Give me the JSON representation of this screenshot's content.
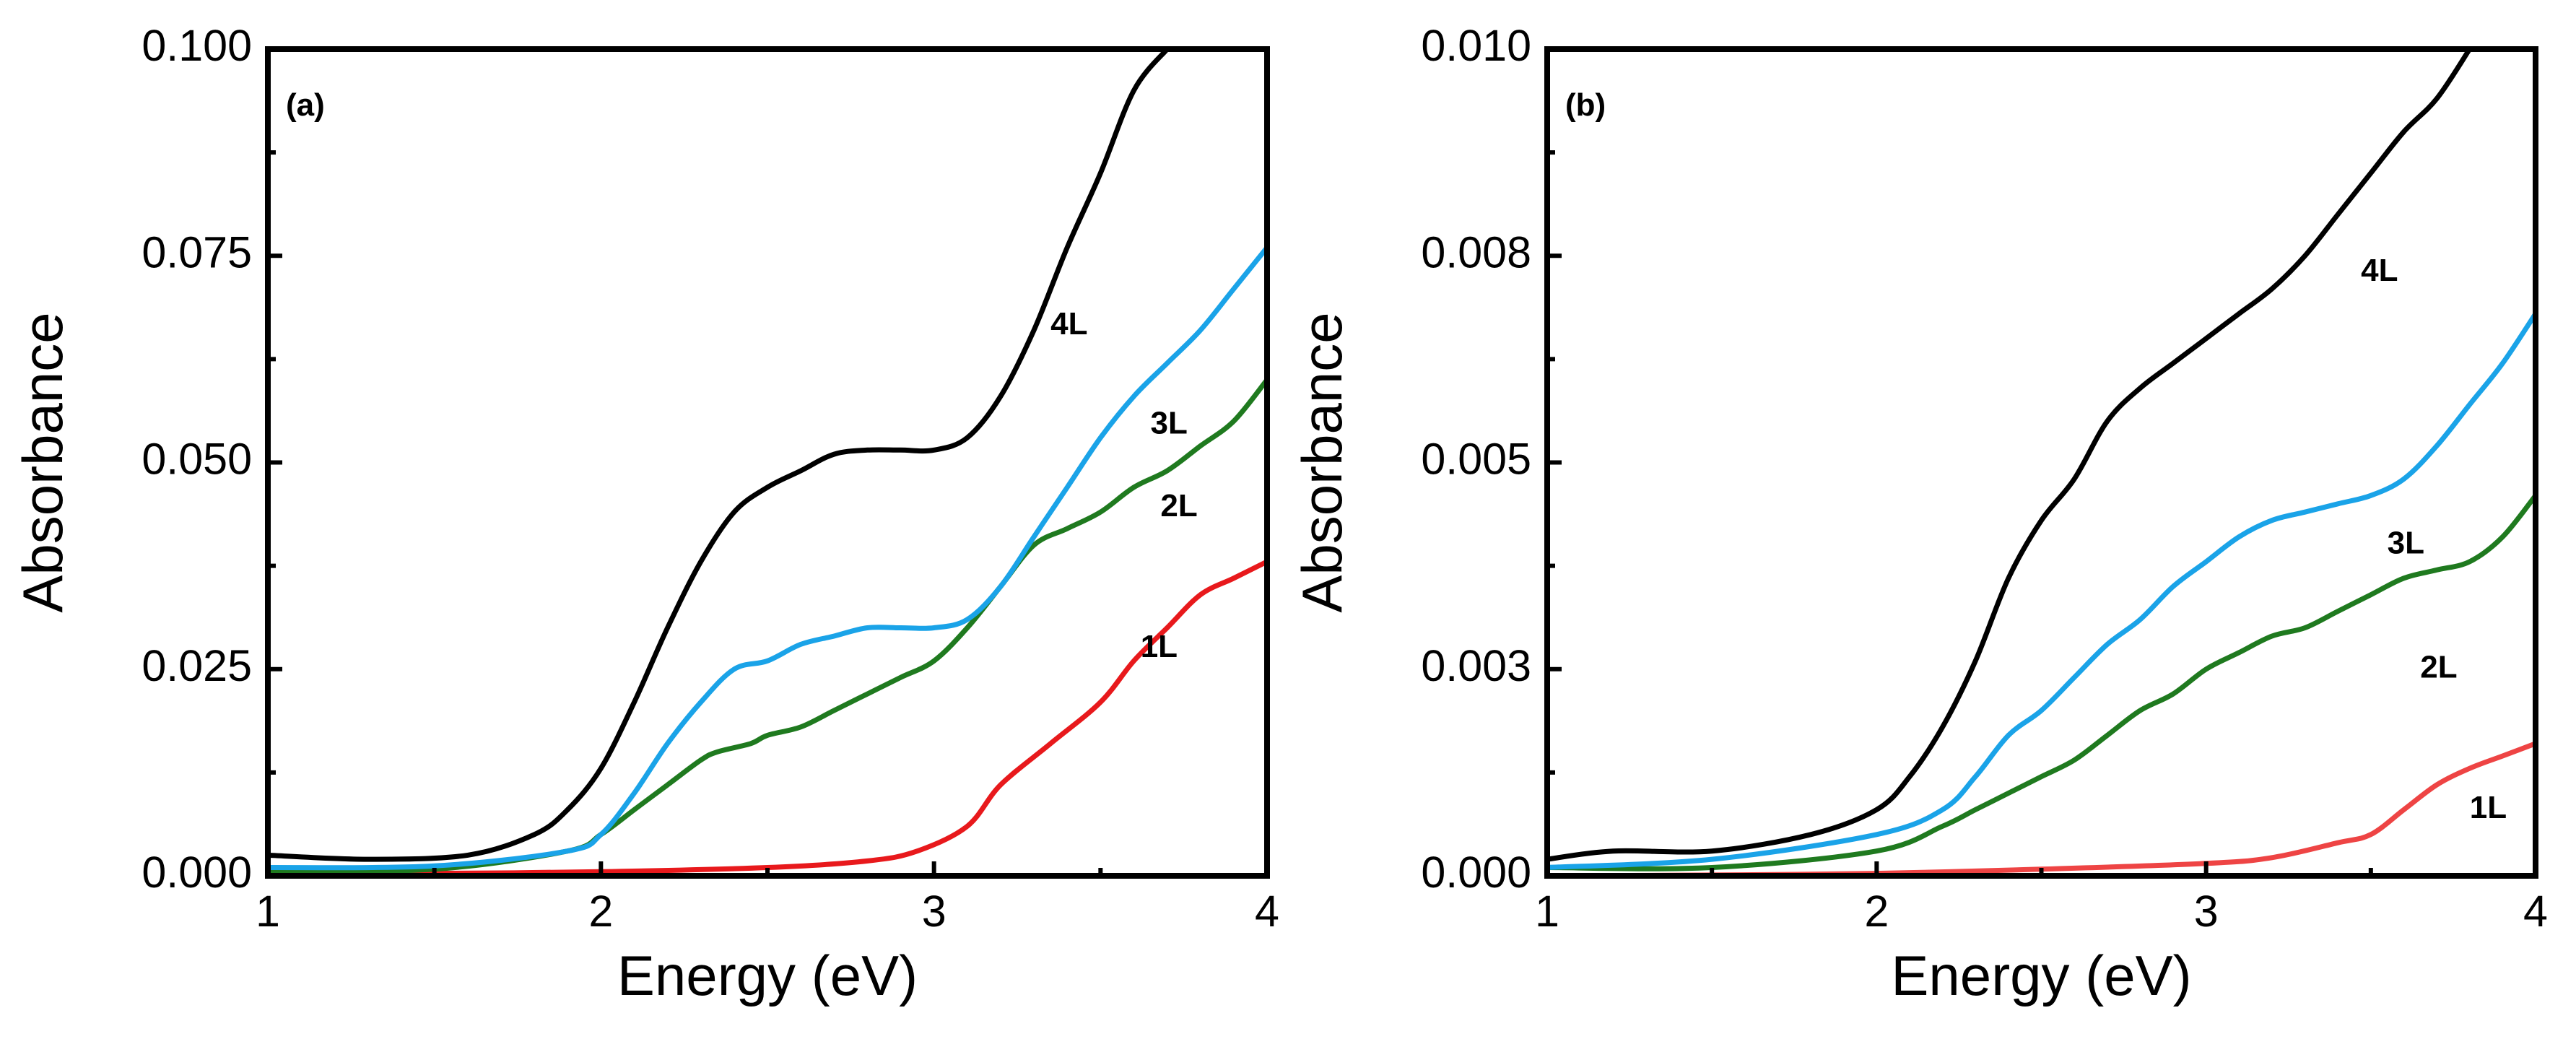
{
  "chart_data": [
    {
      "type": "line",
      "panel_label": "(a)",
      "xlabel": "Energy (eV)",
      "ylabel": "Absorbance",
      "xlim": [
        1,
        4
      ],
      "ylim": [
        0,
        0.1
      ],
      "xticks": [
        1,
        2,
        3,
        4
      ],
      "xtick_labels": [
        "1",
        "2",
        "3",
        "4"
      ],
      "yticks": [
        0,
        0.025,
        0.05,
        0.075,
        0.1
      ],
      "ytick_labels": [
        "0.000",
        "0.025",
        "0.050",
        "0.075",
        "0.100"
      ],
      "grid": false,
      "series": [
        {
          "name": "1L",
          "color": "#e8191c",
          "label_at": [
            3.62,
            0.0275
          ],
          "x": [
            1.0,
            1.5,
            2.0,
            2.5,
            2.8,
            2.95,
            3.1,
            3.2,
            3.35,
            3.5,
            3.6,
            3.7,
            3.8,
            3.9,
            4.0
          ],
          "y": [
            0.0003,
            0.0003,
            0.0005,
            0.001,
            0.0018,
            0.003,
            0.006,
            0.011,
            0.016,
            0.021,
            0.026,
            0.03,
            0.034,
            0.036,
            0.038
          ]
        },
        {
          "name": "2L",
          "color": "#1f7a1f",
          "label_at": [
            3.68,
            0.0445
          ],
          "x": [
            1.0,
            1.5,
            1.9,
            2.0,
            2.1,
            2.2,
            2.3,
            2.35,
            2.45,
            2.5,
            2.6,
            2.7,
            2.8,
            2.9,
            3.0,
            3.1,
            3.2,
            3.3,
            3.4,
            3.5,
            3.6,
            3.7,
            3.8,
            3.9,
            4.0
          ],
          "y": [
            0.0005,
            0.0008,
            0.003,
            0.005,
            0.008,
            0.011,
            0.014,
            0.015,
            0.016,
            0.017,
            0.018,
            0.02,
            0.022,
            0.024,
            0.026,
            0.03,
            0.035,
            0.04,
            0.042,
            0.044,
            0.047,
            0.049,
            0.052,
            0.055,
            0.06
          ]
        },
        {
          "name": "3L",
          "color": "#1aa3e8",
          "label_at": [
            3.65,
            0.0545
          ],
          "x": [
            1.0,
            1.5,
            1.9,
            2.0,
            2.1,
            2.2,
            2.3,
            2.4,
            2.5,
            2.6,
            2.7,
            2.8,
            2.9,
            3.0,
            3.1,
            3.2,
            3.3,
            3.4,
            3.5,
            3.6,
            3.7,
            3.8,
            3.9,
            4.0
          ],
          "y": [
            0.001,
            0.0012,
            0.003,
            0.005,
            0.01,
            0.016,
            0.021,
            0.025,
            0.026,
            0.028,
            0.029,
            0.03,
            0.03,
            0.03,
            0.031,
            0.035,
            0.041,
            0.047,
            0.053,
            0.058,
            0.062,
            0.066,
            0.071,
            0.076
          ]
        },
        {
          "name": "4L",
          "color": "#000000",
          "label_at": [
            3.35,
            0.0665
          ],
          "x": [
            1.0,
            1.3,
            1.6,
            1.8,
            1.9,
            2.0,
            2.1,
            2.2,
            2.3,
            2.4,
            2.5,
            2.6,
            2.7,
            2.8,
            2.9,
            3.0,
            3.1,
            3.2,
            3.3,
            3.4,
            3.5,
            3.6,
            3.7
          ],
          "y": [
            0.0025,
            0.002,
            0.0025,
            0.005,
            0.008,
            0.013,
            0.021,
            0.03,
            0.038,
            0.044,
            0.047,
            0.049,
            0.051,
            0.0515,
            0.0515,
            0.0515,
            0.053,
            0.058,
            0.066,
            0.076,
            0.085,
            0.095,
            0.1
          ]
        }
      ]
    },
    {
      "type": "line",
      "panel_label": "(b)",
      "xlabel": "Energy (eV)",
      "ylabel": "Absorbance",
      "xlim": [
        1,
        4
      ],
      "ylim": [
        0,
        0.01
      ],
      "xticks": [
        1,
        2,
        3,
        4
      ],
      "xtick_labels": [
        "1",
        "2",
        "3",
        "4"
      ],
      "yticks": [
        0,
        0.0025,
        0.005,
        0.0075,
        0.01
      ],
      "ytick_labels": [
        "0.000",
        "0.003",
        "0.005",
        "0.008",
        "0.010"
      ],
      "grid": false,
      "series": [
        {
          "name": "1L",
          "color": "#ee4444",
          "label_at": [
            3.8,
            0.0008
          ],
          "x": [
            1.0,
            1.5,
            2.0,
            2.5,
            3.0,
            3.2,
            3.4,
            3.5,
            3.6,
            3.7,
            3.8,
            3.9,
            4.0
          ],
          "y": [
            0.0,
            1e-05,
            3e-05,
            8e-05,
            0.00015,
            0.00022,
            0.0004,
            0.0005,
            0.0008,
            0.0011,
            0.0013,
            0.00145,
            0.0016
          ]
        },
        {
          "name": "2L",
          "color": "#1f7a1f",
          "label_at": [
            3.65,
            0.0025
          ],
          "x": [
            1.0,
            1.5,
            2.0,
            2.2,
            2.3,
            2.4,
            2.5,
            2.6,
            2.7,
            2.8,
            2.9,
            3.0,
            3.1,
            3.2,
            3.3,
            3.4,
            3.5,
            3.6,
            3.7,
            3.8,
            3.9,
            4.0
          ],
          "y": [
            0.0001,
            0.0001,
            0.0003,
            0.0006,
            0.0008,
            0.001,
            0.0012,
            0.0014,
            0.0017,
            0.002,
            0.0022,
            0.0025,
            0.0027,
            0.0029,
            0.003,
            0.0032,
            0.0034,
            0.0036,
            0.0037,
            0.0038,
            0.0041,
            0.0046
          ]
        },
        {
          "name": "3L",
          "color": "#1aa3e8",
          "label_at": [
            3.55,
            0.004
          ],
          "x": [
            1.0,
            1.5,
            2.0,
            2.2,
            2.3,
            2.4,
            2.5,
            2.6,
            2.7,
            2.8,
            2.9,
            3.0,
            3.1,
            3.2,
            3.3,
            3.4,
            3.5,
            3.6,
            3.7,
            3.8,
            3.9,
            4.0
          ],
          "y": [
            0.0001,
            0.0002,
            0.0005,
            0.0008,
            0.0012,
            0.0017,
            0.002,
            0.0024,
            0.0028,
            0.0031,
            0.0035,
            0.0038,
            0.0041,
            0.0043,
            0.0044,
            0.0045,
            0.0046,
            0.0048,
            0.0052,
            0.0057,
            0.0062,
            0.0068
          ]
        },
        {
          "name": "4L",
          "color": "#000000",
          "label_at": [
            3.47,
            0.0073
          ],
          "x": [
            1.0,
            1.2,
            1.5,
            1.8,
            2.0,
            2.1,
            2.2,
            2.3,
            2.4,
            2.5,
            2.6,
            2.7,
            2.8,
            2.9,
            3.0,
            3.1,
            3.2,
            3.3,
            3.4,
            3.5,
            3.6,
            3.7,
            3.8
          ],
          "y": [
            0.0002,
            0.0003,
            0.0003,
            0.0005,
            0.0008,
            0.0012,
            0.0018,
            0.0026,
            0.0036,
            0.0043,
            0.0048,
            0.0055,
            0.0059,
            0.0062,
            0.0065,
            0.0068,
            0.0071,
            0.0075,
            0.008,
            0.0085,
            0.009,
            0.0094,
            0.01
          ]
        }
      ]
    }
  ]
}
